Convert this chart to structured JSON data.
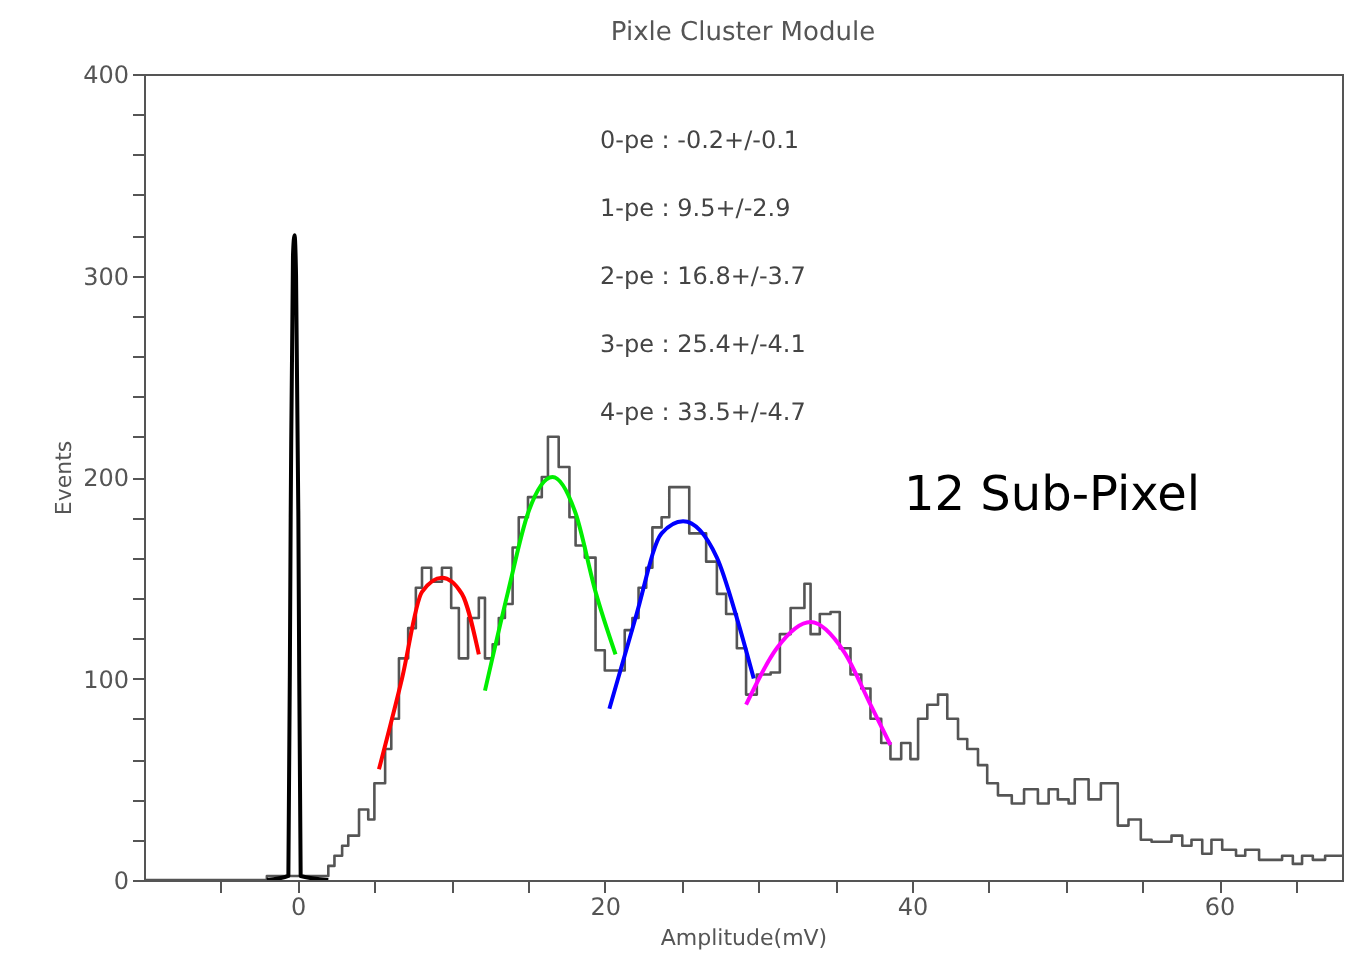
{
  "chart_data": {
    "type": "step",
    "title": "Pixle Cluster Module",
    "xlabel": "Amplitude(mV)",
    "ylabel": "Events",
    "xlim": [
      -10,
      68
    ],
    "xticks": [
      {
        "value": -5,
        "label": null
      },
      0,
      {
        "value": 5,
        "label": null
      },
      {
        "value": 10,
        "label": null
      },
      {
        "value": 15,
        "label": null
      },
      20,
      {
        "value": 25,
        "label": null
      },
      {
        "value": 30,
        "label": null
      },
      {
        "value": 35,
        "label": null
      },
      40,
      {
        "value": 45,
        "label": null
      },
      {
        "value": 50,
        "label": null
      },
      {
        "value": 55,
        "label": null
      },
      60,
      {
        "value": 65,
        "label": null
      }
    ],
    "ylim": [
      0,
      400
    ],
    "yticks": [
      0,
      {
        "value": 20,
        "label": null
      },
      {
        "value": 40,
        "label": null
      },
      {
        "value": 60,
        "label": null
      },
      {
        "value": 80,
        "label": null
      },
      100,
      {
        "value": 120,
        "label": null
      },
      {
        "value": 140,
        "label": null
      },
      {
        "value": 160,
        "label": null
      },
      {
        "value": 180,
        "label": null
      },
      200,
      {
        "value": 220,
        "label": null
      },
      {
        "value": 240,
        "label": null
      },
      {
        "value": 260,
        "label": null
      },
      {
        "value": 280,
        "label": null
      },
      300,
      {
        "value": 320,
        "label": null
      },
      {
        "value": 340,
        "label": null
      },
      {
        "value": 360,
        "label": null
      },
      {
        "value": 380,
        "label": null
      },
      400
    ],
    "annotations": [
      "0-pe : -0.2+/-0.1",
      "1-pe :  9.5+/-2.9",
      "2-pe : 16.8+/-3.7",
      "3-pe : 25.4+/-4.1",
      "4-pe : 33.5+/-4.7",
      "12 Sub-Pixel"
    ],
    "series": [
      {
        "color": "#555555",
        "x": [
          -10,
          -2,
          2.0,
          2.4,
          2.9,
          3.3,
          4.0,
          4.6,
          5.0,
          5.7,
          6.1,
          6.6,
          7.2,
          7.7,
          8.1,
          8.7,
          9.4,
          10.0,
          10.5,
          11.1,
          11.8,
          12.2,
          12.7,
          13.1,
          13.5,
          14.0,
          14.4,
          15.0,
          15.9,
          16.3,
          17.0,
          17.7,
          18.1,
          18.7,
          19.4,
          20.0,
          20.7,
          21.3,
          21.8,
          22.2,
          22.7,
          23.1,
          23.7,
          24.2,
          25.5,
          26.6,
          27.3,
          27.9,
          28.6,
          29.2,
          29.9,
          30.8,
          31.4,
          32.1,
          33.0,
          33.4,
          34.0,
          34.7,
          35.3,
          36.0,
          36.7,
          37.3,
          38.0,
          38.6,
          39.3,
          39.9,
          40.4,
          41.0,
          41.7,
          42.3,
          43.0,
          43.6,
          44.3,
          44.9,
          45.6,
          46.5,
          47.3,
          48.2,
          48.9,
          49.5,
          50.2,
          50.6,
          51.5,
          52.3,
          53.4,
          54.1,
          54.9,
          55.6,
          56.9,
          57.6,
          58.2,
          58.9,
          59.5,
          60.2,
          61.1,
          61.7,
          62.6,
          64.1,
          64.8,
          65.4,
          66.1,
          66.9,
          68
        ],
        "values": [
          0,
          2,
          7,
          12,
          17,
          22,
          35,
          30,
          48,
          65,
          80,
          110,
          125,
          145,
          155,
          148,
          155,
          135,
          110,
          130,
          140,
          110,
          117,
          130,
          137,
          165,
          180,
          190,
          200,
          220,
          205,
          180,
          166,
          160,
          114,
          104,
          104,
          124,
          130,
          145,
          155,
          175,
          180,
          195,
          172,
          158,
          142,
          132,
          115,
          92,
          102,
          103,
          122,
          135,
          147,
          122,
          132,
          133,
          115,
          102,
          95,
          80,
          68,
          60,
          68,
          60,
          80,
          87,
          92,
          80,
          70,
          65,
          57,
          48,
          42,
          38,
          45,
          38,
          45,
          40,
          38,
          50,
          40,
          48,
          27,
          30,
          20,
          19,
          22,
          17,
          20,
          13,
          20,
          15,
          12,
          15,
          10,
          12,
          8,
          12,
          10,
          12,
          12
        ]
      },
      {
        "type": "line",
        "color": "#000000",
        "x": [
          -2,
          -0.6,
          -0.45,
          -0.3,
          -0.2,
          -0.1,
          0.05,
          0.2,
          2
        ],
        "values": [
          0,
          2,
          180,
          310,
          320,
          300,
          180,
          2,
          0
        ]
      },
      {
        "type": "line",
        "color": "#ff0000",
        "x": [
          5.3,
          6.8,
          8.1,
          9.4,
          10.7,
          11.8
        ],
        "values": [
          55,
          100,
          143,
          150,
          142,
          112
        ]
      },
      {
        "type": "line",
        "color": "#00ee00",
        "x": [
          12.2,
          13.7,
          15.0,
          16.6,
          18.1,
          19.4,
          20.7
        ],
        "values": [
          94,
          143,
          182,
          200,
          182,
          143,
          112
        ]
      },
      {
        "type": "line",
        "color": "#0000ff",
        "x": [
          20.3,
          22.0,
          23.7,
          25.1,
          27.3,
          28.6,
          29.7
        ],
        "values": [
          85,
          130,
          172,
          178,
          160,
          130,
          100
        ]
      },
      {
        "type": "line",
        "color": "#ff00ff",
        "x": [
          29.2,
          31.2,
          33.4,
          35.6,
          37.3,
          38.6
        ],
        "values": [
          87,
          115,
          128,
          113,
          87,
          67
        ]
      }
    ]
  }
}
